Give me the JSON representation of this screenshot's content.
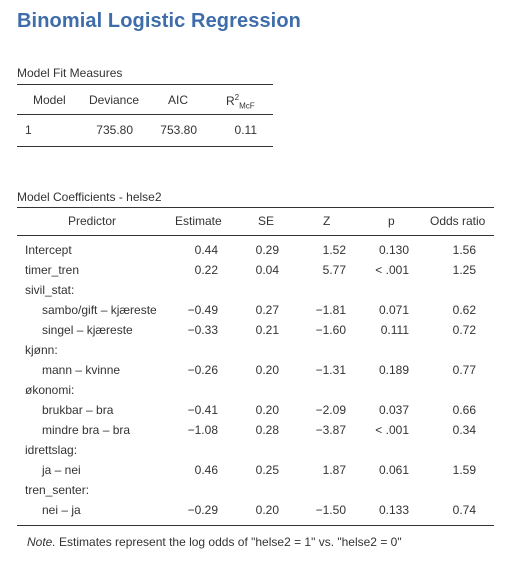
{
  "title": "Binomial Logistic Regression",
  "fit": {
    "title": "Model Fit Measures",
    "headers": {
      "model": "Model",
      "deviance": "Deviance",
      "aic": "AIC",
      "r2": "R",
      "r2_sup": "2",
      "r2_sub": "McF"
    },
    "row": {
      "model": "1",
      "deviance": "735.80",
      "aic": "753.80",
      "r2": "0.11"
    }
  },
  "coef": {
    "title": "Model Coefficients - helse2",
    "headers": {
      "predictor": "Predictor",
      "estimate": "Estimate",
      "se": "SE",
      "z": "Z",
      "p": "p",
      "or": "Odds ratio"
    },
    "rows": [
      {
        "predictor": "Intercept",
        "estimate": "0.44",
        "se": "0.29",
        "z": "1.52",
        "p": "0.130",
        "or": "1.56"
      },
      {
        "predictor": "timer_tren",
        "estimate": "0.22",
        "se": "0.04",
        "z": "5.77",
        "p": "< .001",
        "or": "1.25"
      },
      {
        "predictor": "sivil_stat:",
        "estimate": "",
        "se": "",
        "z": "",
        "p": "",
        "or": ""
      },
      {
        "predictor": "sambo/gift – kjæreste",
        "estimate": "−0.49",
        "se": "0.27",
        "z": "−1.81",
        "p": "0.071",
        "or": "0.62"
      },
      {
        "predictor": "singel – kjæreste",
        "estimate": "−0.33",
        "se": "0.21",
        "z": "−1.60",
        "p": "0.111",
        "or": "0.72"
      },
      {
        "predictor": "kjønn:",
        "estimate": "",
        "se": "",
        "z": "",
        "p": "",
        "or": ""
      },
      {
        "predictor": "mann – kvinne",
        "estimate": "−0.26",
        "se": "0.20",
        "z": "−1.31",
        "p": "0.189",
        "or": "0.77"
      },
      {
        "predictor": "økonomi:",
        "estimate": "",
        "se": "",
        "z": "",
        "p": "",
        "or": ""
      },
      {
        "predictor": "brukbar – bra",
        "estimate": "−0.41",
        "se": "0.20",
        "z": "−2.09",
        "p": "0.037",
        "or": "0.66"
      },
      {
        "predictor": "mindre bra – bra",
        "estimate": "−1.08",
        "se": "0.28",
        "z": "−3.87",
        "p": "< .001",
        "or": "0.34"
      },
      {
        "predictor": "idrettslag:",
        "estimate": "",
        "se": "",
        "z": "",
        "p": "",
        "or": ""
      },
      {
        "predictor": "ja – nei",
        "estimate": "0.46",
        "se": "0.25",
        "z": "1.87",
        "p": "0.061",
        "or": "1.59"
      },
      {
        "predictor": "tren_senter:",
        "estimate": "",
        "se": "",
        "z": "",
        "p": "",
        "or": ""
      },
      {
        "predictor": "nei – ja",
        "estimate": "−0.29",
        "se": "0.20",
        "z": "−1.50",
        "p": "0.133",
        "or": "0.74"
      }
    ],
    "indent": [
      false,
      false,
      false,
      true,
      true,
      false,
      true,
      false,
      true,
      true,
      false,
      true,
      false,
      true
    ]
  },
  "note": {
    "label": "Note.",
    "text": " Estimates represent the log odds of \"helse2 = 1\" vs. \"helse2 = 0\""
  }
}
